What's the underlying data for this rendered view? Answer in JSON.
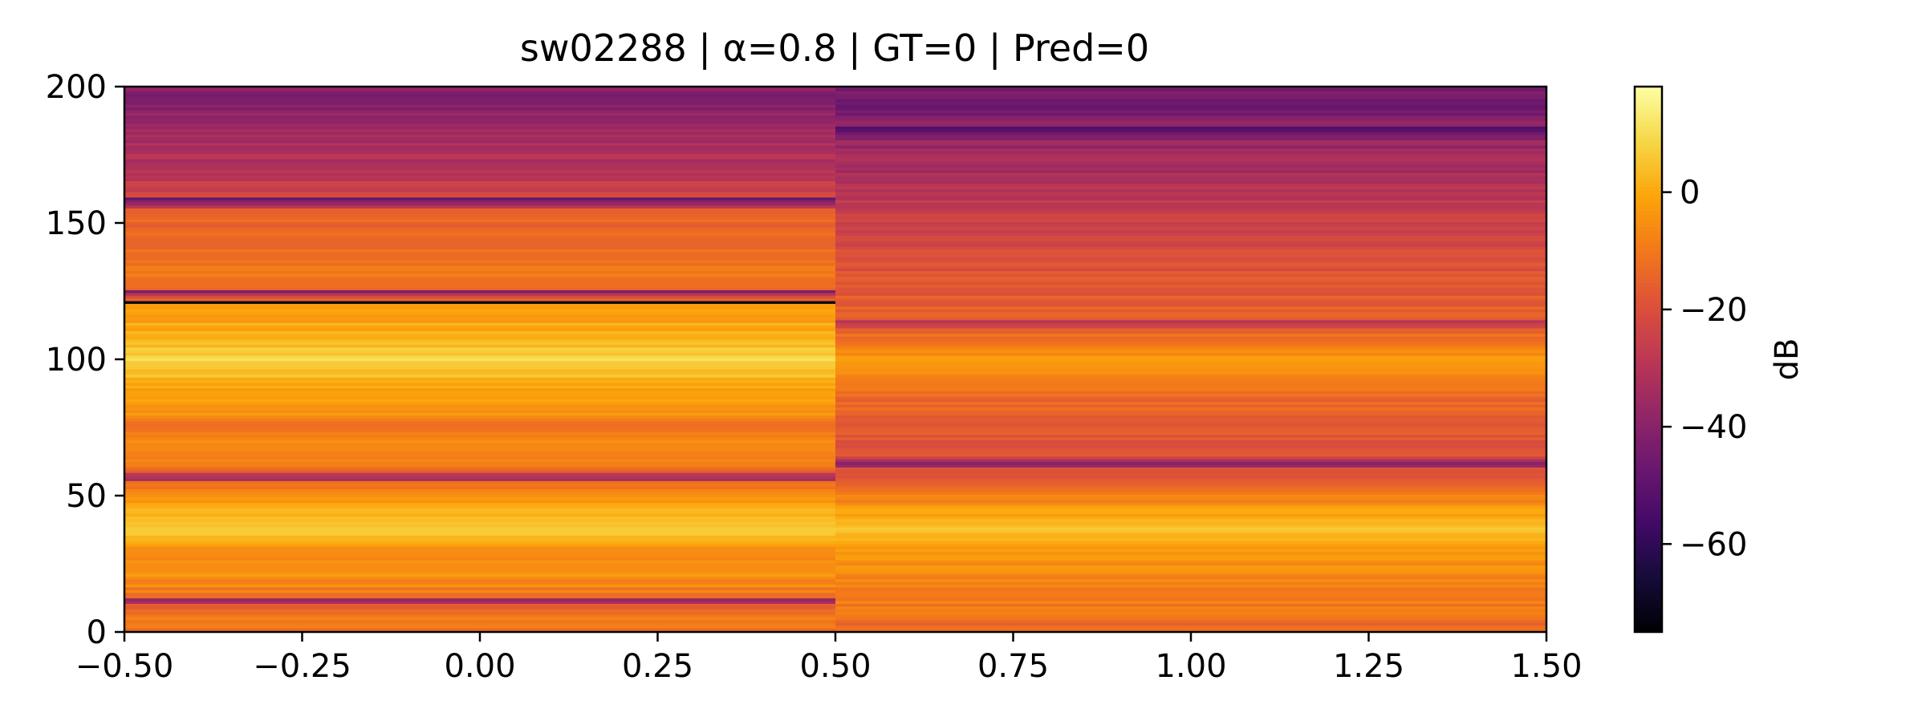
{
  "chart_data": {
    "type": "heatmap",
    "title": "sw02288 | α=0.8 | GT=0 | Pred=0",
    "xlabel": "",
    "ylabel": "",
    "xlim": [
      -0.5,
      1.5
    ],
    "ylim": [
      0,
      200
    ],
    "x_ticks": [
      -0.5,
      -0.25,
      0.0,
      0.25,
      0.5,
      0.75,
      1.0,
      1.25,
      1.5
    ],
    "x_tick_labels": [
      "−0.50",
      "−0.25",
      "0.00",
      "0.25",
      "0.50",
      "0.75",
      "1.00",
      "1.25",
      "1.50"
    ],
    "y_ticks": [
      0,
      50,
      100,
      150,
      200
    ],
    "y_tick_labels": [
      "0",
      "50",
      "100",
      "150",
      "200"
    ],
    "colormap": "inferno",
    "colorbar": {
      "label": "dB",
      "range": [
        -75,
        18
      ],
      "ticks": [
        0,
        -20,
        -40,
        -60
      ],
      "tick_labels": [
        "0",
        "−20",
        "−40",
        "−60"
      ]
    },
    "columns": [
      {
        "x_center": 0,
        "x_range": [
          -0.5,
          0.5
        ]
      },
      {
        "x_center": 1,
        "x_range": [
          0.5,
          1.5
        ]
      }
    ],
    "rows": 201,
    "profiles_db": {
      "column_0": [
        {
          "y": 0,
          "db": -12
        },
        {
          "y": 5,
          "db": -8
        },
        {
          "y": 10,
          "db": -15
        },
        {
          "y": 12,
          "db": -35
        },
        {
          "y": 14,
          "db": -10
        },
        {
          "y": 20,
          "db": -5
        },
        {
          "y": 25,
          "db": -6
        },
        {
          "y": 30,
          "db": -4
        },
        {
          "y": 35,
          "db": 3
        },
        {
          "y": 38,
          "db": 10
        },
        {
          "y": 40,
          "db": 6
        },
        {
          "y": 45,
          "db": 0
        },
        {
          "y": 50,
          "db": -6
        },
        {
          "y": 55,
          "db": -14
        },
        {
          "y": 57,
          "db": -32
        },
        {
          "y": 60,
          "db": -12
        },
        {
          "y": 65,
          "db": -8
        },
        {
          "y": 70,
          "db": -7
        },
        {
          "y": 75,
          "db": -10
        },
        {
          "y": 80,
          "db": -6
        },
        {
          "y": 85,
          "db": -3
        },
        {
          "y": 90,
          "db": 0
        },
        {
          "y": 95,
          "db": 5
        },
        {
          "y": 100,
          "db": 8
        },
        {
          "y": 105,
          "db": 5
        },
        {
          "y": 110,
          "db": 1
        },
        {
          "y": 115,
          "db": -2
        },
        {
          "y": 120,
          "db": -3
        },
        {
          "y": 121,
          "db": -75
        },
        {
          "y": 122,
          "db": -12
        },
        {
          "y": 125,
          "db": -40
        },
        {
          "y": 127,
          "db": -11
        },
        {
          "y": 130,
          "db": -10
        },
        {
          "y": 140,
          "db": -12
        },
        {
          "y": 150,
          "db": -14
        },
        {
          "y": 155,
          "db": -18
        },
        {
          "y": 159,
          "db": -50
        },
        {
          "y": 161,
          "db": -24
        },
        {
          "y": 170,
          "db": -30
        },
        {
          "y": 180,
          "db": -34
        },
        {
          "y": 190,
          "db": -38
        },
        {
          "y": 196,
          "db": -46
        },
        {
          "y": 200,
          "db": -36
        }
      ],
      "column_1": [
        {
          "y": 0,
          "db": -14
        },
        {
          "y": 5,
          "db": -12
        },
        {
          "y": 10,
          "db": -10
        },
        {
          "y": 15,
          "db": -8
        },
        {
          "y": 20,
          "db": -8
        },
        {
          "y": 25,
          "db": -5
        },
        {
          "y": 30,
          "db": -3
        },
        {
          "y": 35,
          "db": 2
        },
        {
          "y": 38,
          "db": 6
        },
        {
          "y": 40,
          "db": 4
        },
        {
          "y": 45,
          "db": -2
        },
        {
          "y": 50,
          "db": -8
        },
        {
          "y": 55,
          "db": -16
        },
        {
          "y": 60,
          "db": -22
        },
        {
          "y": 62,
          "db": -38
        },
        {
          "y": 65,
          "db": -20
        },
        {
          "y": 70,
          "db": -18
        },
        {
          "y": 80,
          "db": -15
        },
        {
          "y": 90,
          "db": -12
        },
        {
          "y": 95,
          "db": -6
        },
        {
          "y": 100,
          "db": -3
        },
        {
          "y": 105,
          "db": -9
        },
        {
          "y": 110,
          "db": -14
        },
        {
          "y": 114,
          "db": -32
        },
        {
          "y": 116,
          "db": -15
        },
        {
          "y": 125,
          "db": -17
        },
        {
          "y": 135,
          "db": -20
        },
        {
          "y": 145,
          "db": -23
        },
        {
          "y": 150,
          "db": -24
        },
        {
          "y": 160,
          "db": -30
        },
        {
          "y": 170,
          "db": -33
        },
        {
          "y": 180,
          "db": -37
        },
        {
          "y": 185,
          "db": -55
        },
        {
          "y": 187,
          "db": -40
        },
        {
          "y": 195,
          "db": -48
        },
        {
          "y": 200,
          "db": -42
        }
      ]
    }
  }
}
